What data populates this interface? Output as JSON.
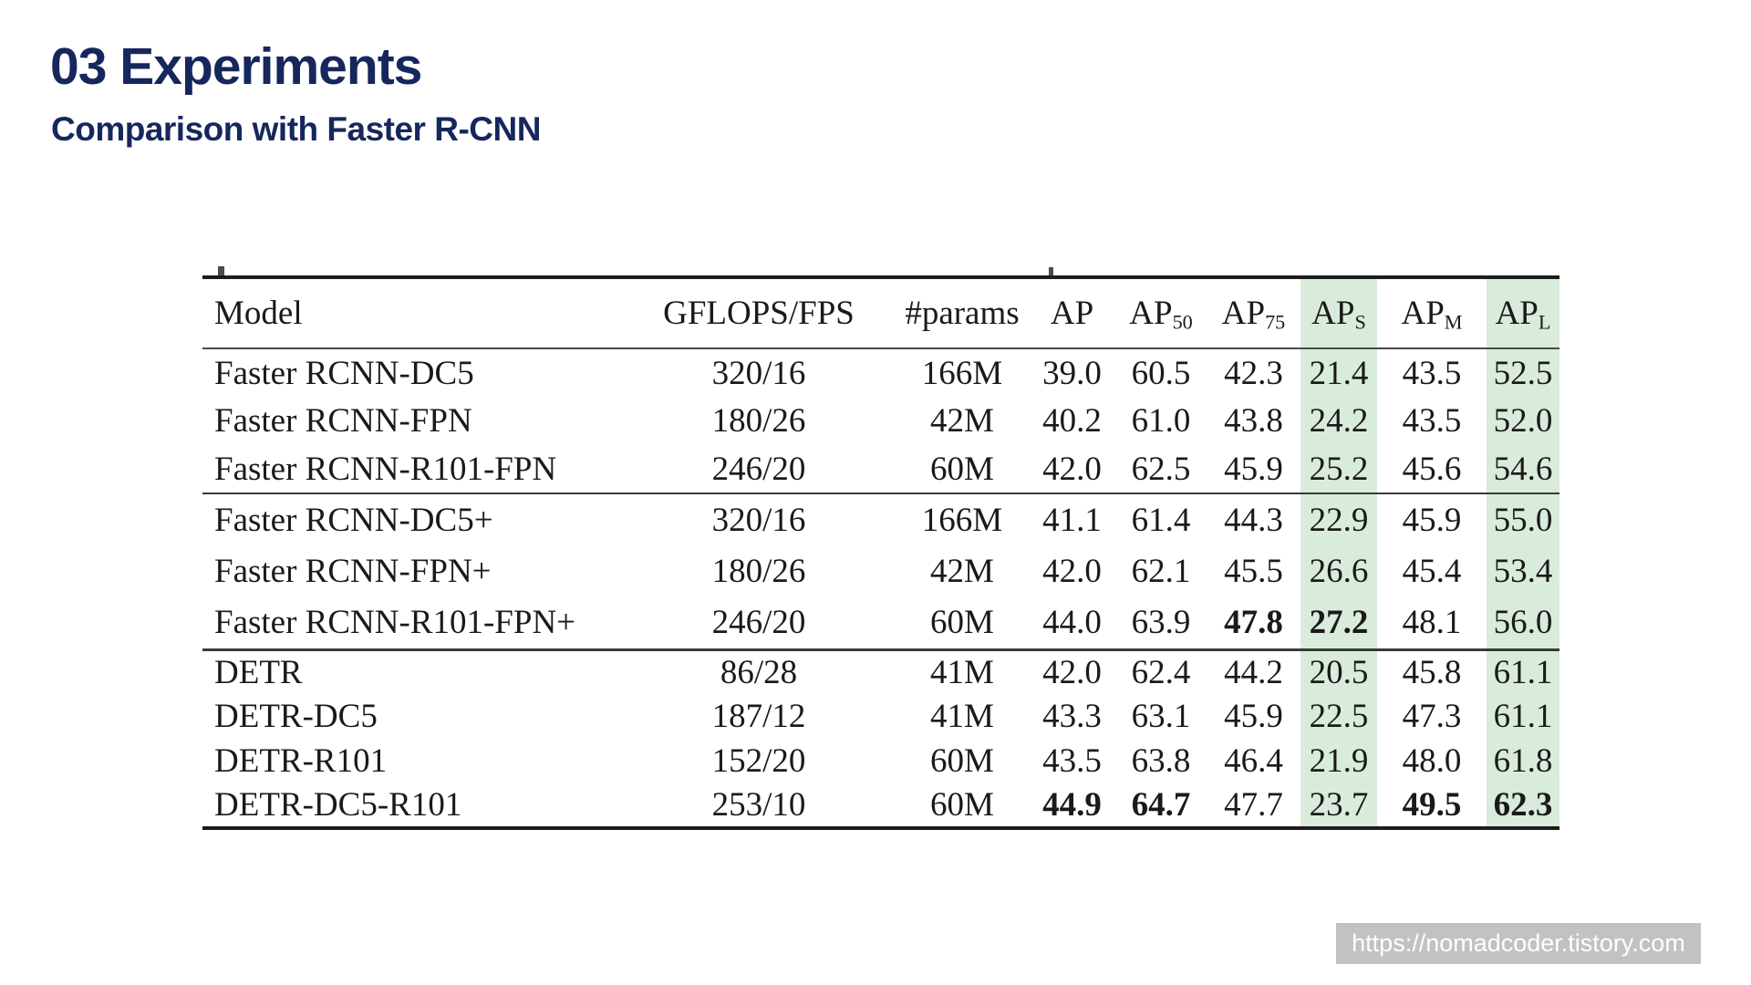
{
  "slide": {
    "title": "03 Experiments",
    "subtitle": "Comparison with Faster R-CNN",
    "watermark_url": "https://nomadcoder.tistory.com"
  },
  "colors": {
    "heading_navy": "#15275d",
    "highlight_green": "#d9ecdb",
    "table_rule": "#1c1c1c",
    "watermark_bg": "#c2c2c2",
    "watermark_text": "#ffffff"
  },
  "chart_data": {
    "type": "table",
    "title": "Comparison with Faster R-CNN",
    "columns": [
      {
        "label": "Model",
        "sub": "",
        "highlight": false
      },
      {
        "label": "GFLOPS/FPS",
        "sub": "",
        "highlight": false
      },
      {
        "label": "#params",
        "sub": "",
        "highlight": false
      },
      {
        "label": "AP",
        "sub": "",
        "highlight": false
      },
      {
        "label": "AP",
        "sub": "50",
        "highlight": false
      },
      {
        "label": "AP",
        "sub": "75",
        "highlight": false
      },
      {
        "label": "AP",
        "sub": "S",
        "highlight": true
      },
      {
        "label": "AP",
        "sub": "M",
        "highlight": false
      },
      {
        "label": "AP",
        "sub": "L",
        "highlight": true
      }
    ],
    "groups": [
      {
        "rows": [
          {
            "cells": [
              "Faster RCNN-DC5",
              "320/16",
              "166M",
              "39.0",
              "60.5",
              "42.3",
              "21.4",
              "43.5",
              "52.5"
            ],
            "bold": []
          },
          {
            "cells": [
              "Faster RCNN-FPN",
              "180/26",
              "42M",
              "40.2",
              "61.0",
              "43.8",
              "24.2",
              "43.5",
              "52.0"
            ],
            "bold": []
          },
          {
            "cells": [
              "Faster RCNN-R101-FPN",
              "246/20",
              "60M",
              "42.0",
              "62.5",
              "45.9",
              "25.2",
              "45.6",
              "54.6"
            ],
            "bold": []
          }
        ]
      },
      {
        "rows": [
          {
            "cells": [
              "Faster RCNN-DC5+",
              "320/16",
              "166M",
              "41.1",
              "61.4",
              "44.3",
              "22.9",
              "45.9",
              "55.0"
            ],
            "bold": []
          },
          {
            "cells": [
              "Faster RCNN-FPN+",
              "180/26",
              "42M",
              "42.0",
              "62.1",
              "45.5",
              "26.6",
              "45.4",
              "53.4"
            ],
            "bold": []
          },
          {
            "cells": [
              "Faster RCNN-R101-FPN+",
              "246/20",
              "60M",
              "44.0",
              "63.9",
              "47.8",
              "27.2",
              "48.1",
              "56.0"
            ],
            "bold": [
              5,
              6
            ]
          }
        ]
      },
      {
        "rows": [
          {
            "cells": [
              "DETR",
              "86/28",
              "41M",
              "42.0",
              "62.4",
              "44.2",
              "20.5",
              "45.8",
              "61.1"
            ],
            "bold": []
          },
          {
            "cells": [
              "DETR-DC5",
              "187/12",
              "41M",
              "43.3",
              "63.1",
              "45.9",
              "22.5",
              "47.3",
              "61.1"
            ],
            "bold": []
          },
          {
            "cells": [
              "DETR-R101",
              "152/20",
              "60M",
              "43.5",
              "63.8",
              "46.4",
              "21.9",
              "48.0",
              "61.8"
            ],
            "bold": []
          },
          {
            "cells": [
              "DETR-DC5-R101",
              "253/10",
              "60M",
              "44.9",
              "64.7",
              "47.7",
              "23.7",
              "49.5",
              "62.3"
            ],
            "bold": [
              3,
              4,
              7,
              8
            ]
          }
        ]
      }
    ]
  }
}
